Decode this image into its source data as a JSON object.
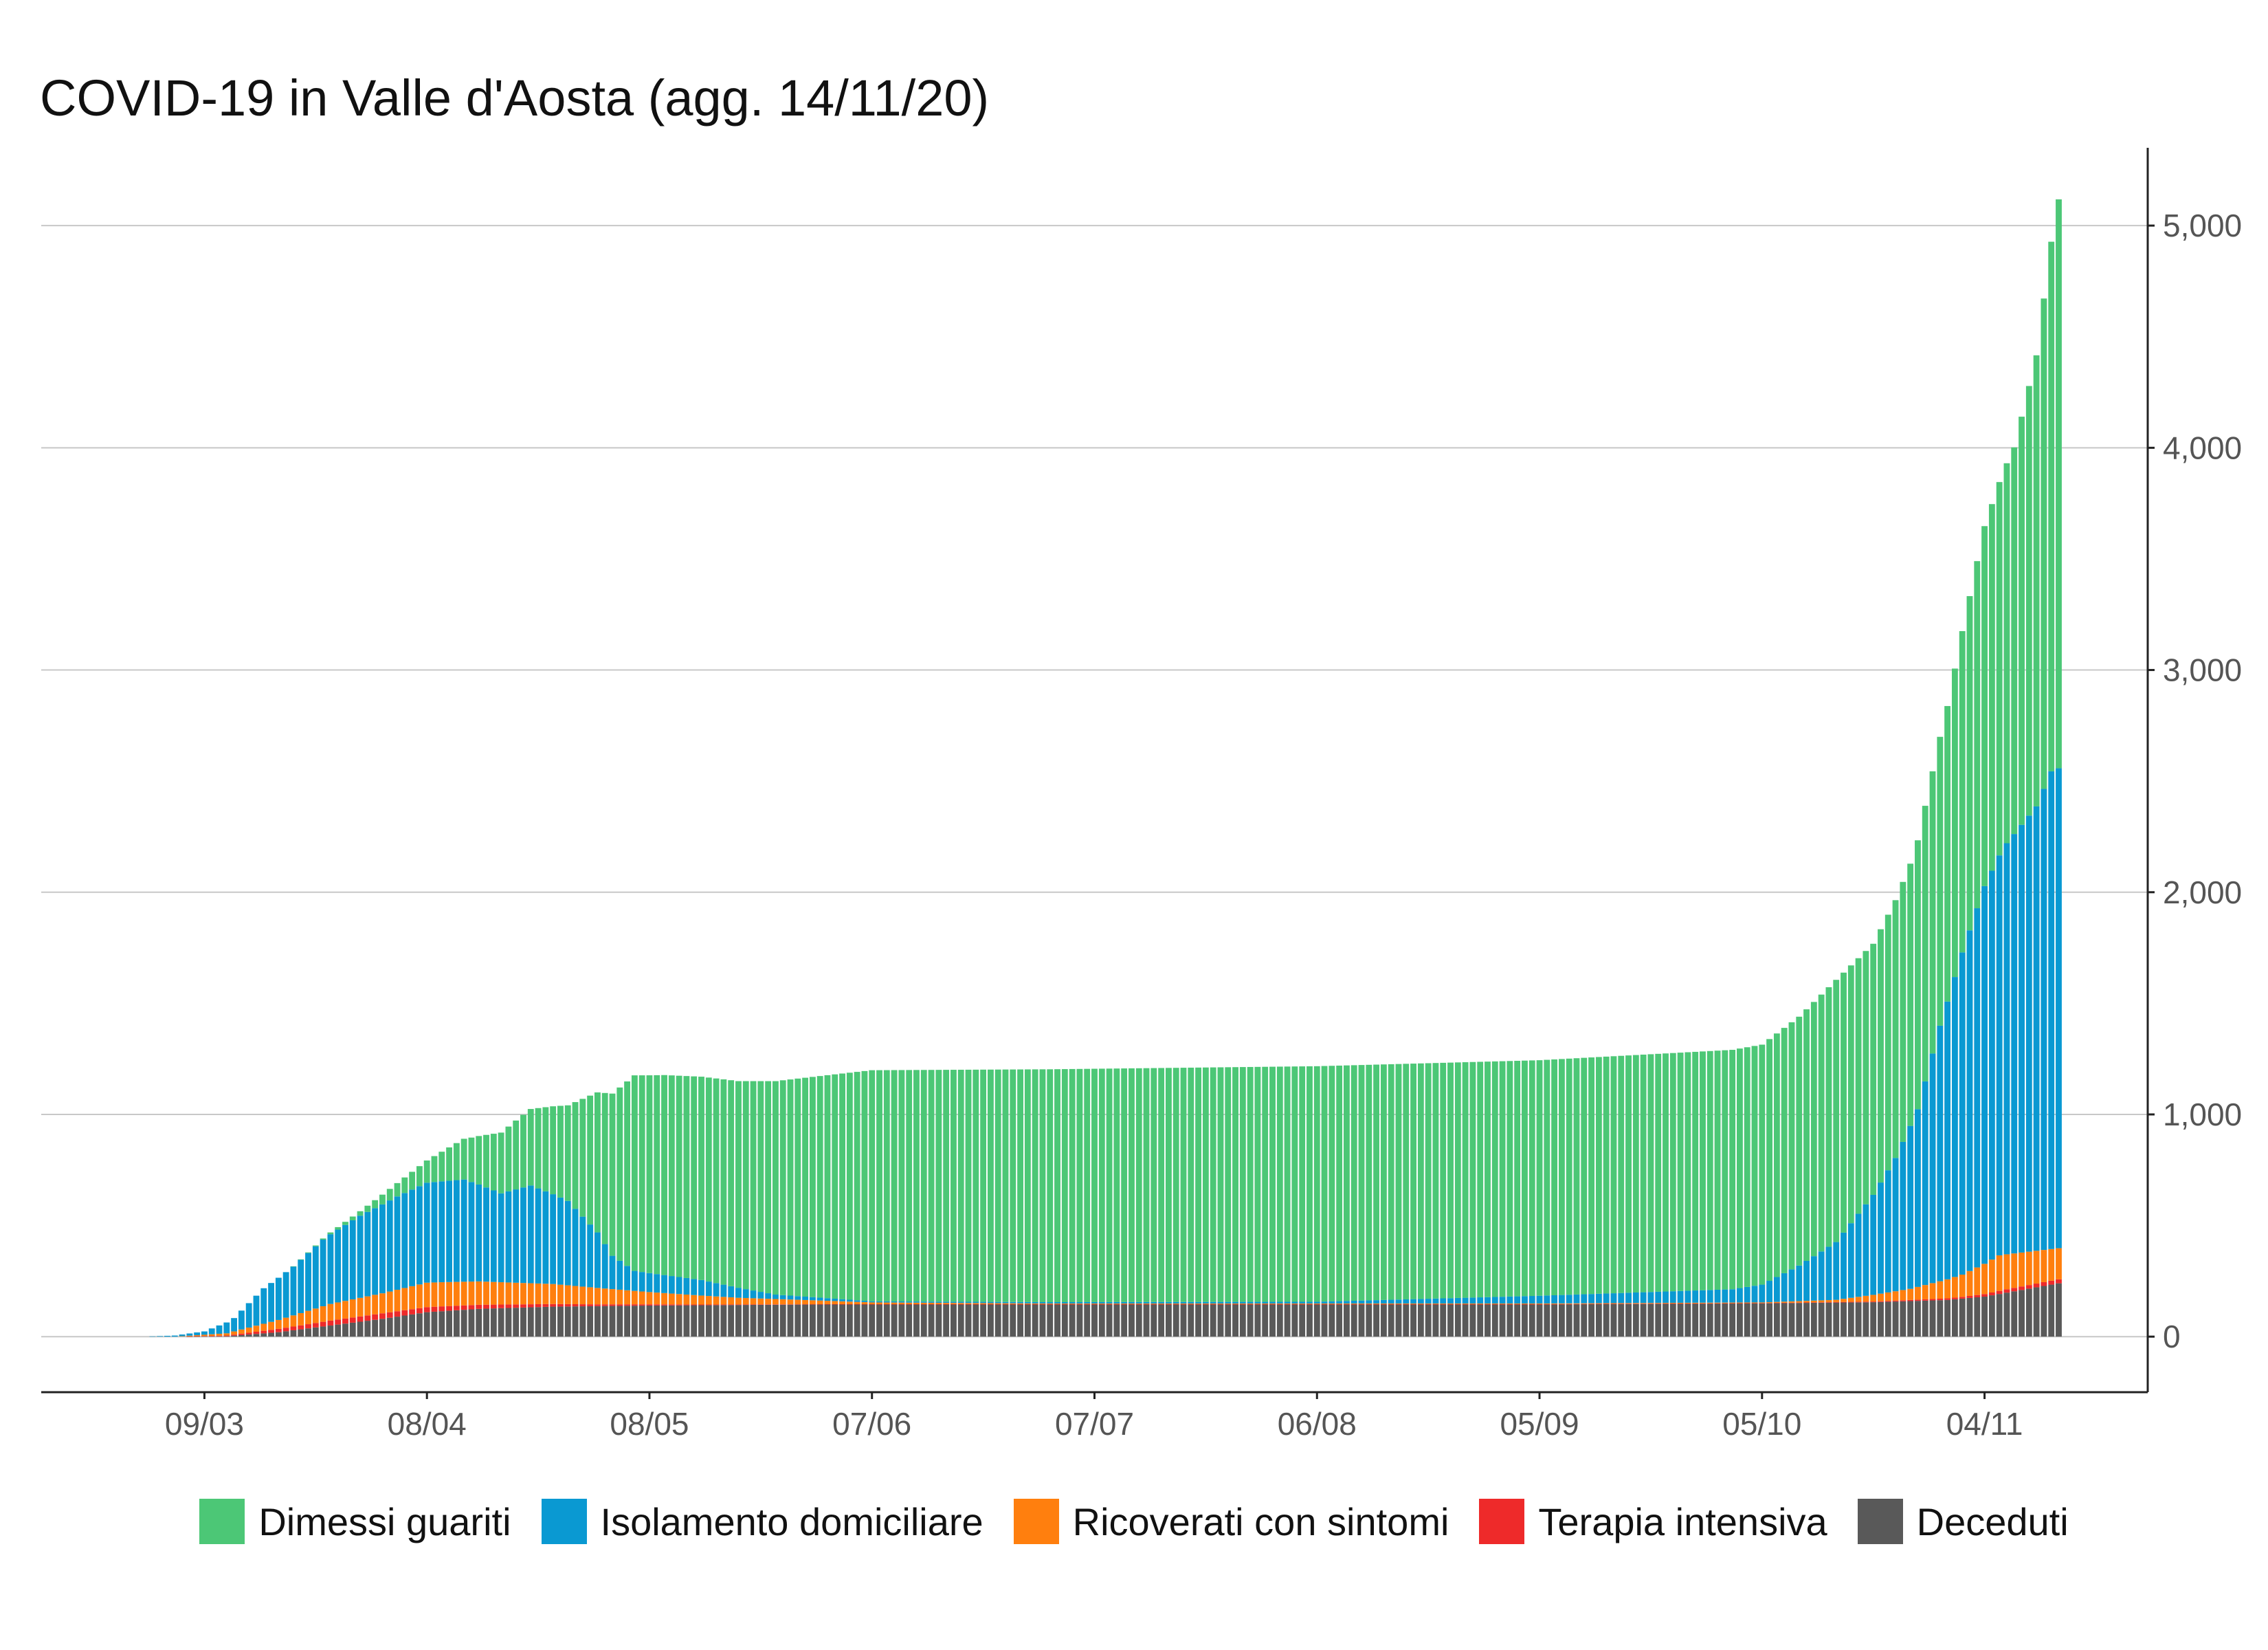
{
  "chart_data": {
    "type": "bar",
    "stacked": true,
    "title": "COVID-19 in Valle d'Aosta (agg. 14/11/20)",
    "xlabel": "",
    "ylabel": "",
    "x_start": "2020-02-24",
    "x_end": "2020-11-14",
    "xlim": [
      "2020-02-16",
      "2020-11-26"
    ],
    "ylim": [
      -250,
      5350
    ],
    "y_axis_position": "right",
    "y_ticks": [
      0,
      1000,
      2000,
      3000,
      4000,
      5000
    ],
    "y_tick_labels": [
      "0",
      "1,000",
      "2,000",
      "3,000",
      "4,000",
      "5,000"
    ],
    "x_ticks": [
      "2020-03-09",
      "2020-04-08",
      "2020-05-08",
      "2020-06-07",
      "2020-07-07",
      "2020-08-06",
      "2020-09-05",
      "2020-10-05",
      "2020-11-04"
    ],
    "x_tick_labels": [
      "09/03",
      "08/04",
      "08/05",
      "07/06",
      "07/07",
      "06/08",
      "05/09",
      "05/10",
      "04/11"
    ],
    "grid": "horizontal",
    "legend_position": "bottom",
    "series": [
      {
        "name": "Deceduti",
        "color": "#595959",
        "keyframes": [
          [
            "2020-02-24",
            0
          ],
          [
            "2020-03-05",
            0
          ],
          [
            "2020-03-12",
            2
          ],
          [
            "2020-03-19",
            20
          ],
          [
            "2020-03-26",
            50
          ],
          [
            "2020-04-02",
            80
          ],
          [
            "2020-04-08",
            110
          ],
          [
            "2020-04-15",
            125
          ],
          [
            "2020-04-25",
            135
          ],
          [
            "2020-05-08",
            140
          ],
          [
            "2020-06-01",
            145
          ],
          [
            "2020-09-05",
            145
          ],
          [
            "2020-10-05",
            150
          ],
          [
            "2020-10-20",
            155
          ],
          [
            "2020-10-30",
            165
          ],
          [
            "2020-11-04",
            180
          ],
          [
            "2020-11-09",
            210
          ],
          [
            "2020-11-14",
            240
          ]
        ]
      },
      {
        "name": "Terapia intensiva",
        "color": "#ee2a2a",
        "keyframes": [
          [
            "2020-02-24",
            0
          ],
          [
            "2020-03-05",
            0
          ],
          [
            "2020-03-12",
            3
          ],
          [
            "2020-03-19",
            15
          ],
          [
            "2020-03-26",
            22
          ],
          [
            "2020-04-02",
            25
          ],
          [
            "2020-04-10",
            22
          ],
          [
            "2020-04-20",
            15
          ],
          [
            "2020-05-01",
            8
          ],
          [
            "2020-05-15",
            3
          ],
          [
            "2020-06-01",
            1
          ],
          [
            "2020-10-05",
            1
          ],
          [
            "2020-10-20",
            3
          ],
          [
            "2020-11-01",
            8
          ],
          [
            "2020-11-07",
            15
          ],
          [
            "2020-11-14",
            18
          ]
        ]
      },
      {
        "name": "Ricoverati con sintomi",
        "color": "#ff7f0e",
        "keyframes": [
          [
            "2020-02-24",
            0
          ],
          [
            "2020-03-05",
            0
          ],
          [
            "2020-03-12",
            10
          ],
          [
            "2020-03-19",
            40
          ],
          [
            "2020-03-26",
            75
          ],
          [
            "2020-04-02",
            90
          ],
          [
            "2020-04-08",
            110
          ],
          [
            "2020-04-15",
            105
          ],
          [
            "2020-04-25",
            90
          ],
          [
            "2020-05-08",
            55
          ],
          [
            "2020-05-20",
            30
          ],
          [
            "2020-06-07",
            8
          ],
          [
            "2020-07-01",
            3
          ],
          [
            "2020-10-05",
            3
          ],
          [
            "2020-10-15",
            10
          ],
          [
            "2020-10-25",
            50
          ],
          [
            "2020-11-01",
            100
          ],
          [
            "2020-11-06",
            160
          ],
          [
            "2020-11-14",
            140
          ]
        ]
      },
      {
        "name": "Isolamento domiciliare",
        "color": "#0a99d2",
        "keyframes": [
          [
            "2020-02-24",
            0
          ],
          [
            "2020-03-01",
            0
          ],
          [
            "2020-03-05",
            5
          ],
          [
            "2020-03-09",
            15
          ],
          [
            "2020-03-13",
            60
          ],
          [
            "2020-03-17",
            160
          ],
          [
            "2020-03-21",
            220
          ],
          [
            "2020-03-25",
            300
          ],
          [
            "2020-03-30",
            370
          ],
          [
            "2020-04-04",
            420
          ],
          [
            "2020-04-08",
            450
          ],
          [
            "2020-04-13",
            460
          ],
          [
            "2020-04-18",
            400
          ],
          [
            "2020-04-22",
            440
          ],
          [
            "2020-04-27",
            380
          ],
          [
            "2020-05-01",
            250
          ],
          [
            "2020-05-03",
            150
          ],
          [
            "2020-05-06",
            90
          ],
          [
            "2020-05-15",
            70
          ],
          [
            "2020-05-25",
            20
          ],
          [
            "2020-06-07",
            5
          ],
          [
            "2020-08-06",
            8
          ],
          [
            "2020-09-05",
            35
          ],
          [
            "2020-10-01",
            60
          ],
          [
            "2020-10-05",
            80
          ],
          [
            "2020-10-10",
            160
          ],
          [
            "2020-10-15",
            260
          ],
          [
            "2020-10-20",
            450
          ],
          [
            "2020-10-23",
            600
          ],
          [
            "2020-10-26",
            800
          ],
          [
            "2020-10-29",
            1150
          ],
          [
            "2020-11-01",
            1450
          ],
          [
            "2020-11-04",
            1700
          ],
          [
            "2020-11-07",
            1850
          ],
          [
            "2020-11-11",
            2000
          ],
          [
            "2020-11-13",
            2150
          ],
          [
            "2020-11-14",
            2160
          ]
        ]
      },
      {
        "name": "Dimessi guariti",
        "color": "#4cc776",
        "keyframes": [
          [
            "2020-02-24",
            0
          ],
          [
            "2020-03-20",
            0
          ],
          [
            "2020-03-25",
            5
          ],
          [
            "2020-03-30",
            20
          ],
          [
            "2020-04-04",
            60
          ],
          [
            "2020-04-08",
            100
          ],
          [
            "2020-04-14",
            200
          ],
          [
            "2020-04-20",
            310
          ],
          [
            "2020-04-27",
            430
          ],
          [
            "2020-05-01",
            630
          ],
          [
            "2020-05-06",
            880
          ],
          [
            "2020-05-10",
            900
          ],
          [
            "2020-05-20",
            930
          ],
          [
            "2020-06-07",
            1040
          ],
          [
            "2020-07-07",
            1050
          ],
          [
            "2020-08-06",
            1060
          ],
          [
            "2020-09-05",
            1060
          ],
          [
            "2020-10-05",
            1080
          ],
          [
            "2020-10-10",
            1120
          ],
          [
            "2020-10-15",
            1180
          ],
          [
            "2020-10-20",
            1130
          ],
          [
            "2020-10-25",
            1180
          ],
          [
            "2020-10-30",
            1330
          ],
          [
            "2020-11-04",
            1620
          ],
          [
            "2020-11-08",
            1740
          ],
          [
            "2020-11-11",
            2030
          ],
          [
            "2020-11-14",
            2560
          ]
        ]
      }
    ]
  }
}
